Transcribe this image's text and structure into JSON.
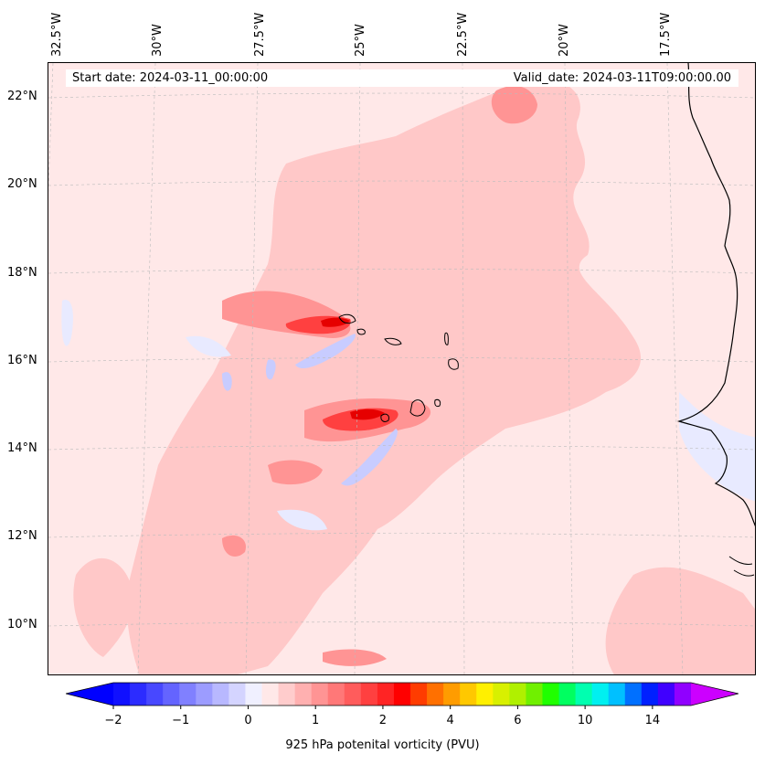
{
  "map": {
    "lon_labels": [
      "32.5°W",
      "30°W",
      "27.5°W",
      "25°W",
      "22.5°W",
      "20°W",
      "17.5°W"
    ],
    "lat_labels": [
      "22°N",
      "20°N",
      "18°N",
      "16°N",
      "14°N",
      "12°N",
      "10°N"
    ],
    "start_date": "Start date: 2024-03-11_00:00:00",
    "valid_date": "Valid_date: 2024-03-11T09:00:00.00",
    "field": "925 hPa potenital vorticity (PVU)",
    "colors": {
      "background": "#ffe8e8",
      "light_red": "#ffc8c8",
      "mid_red": "#ff9494",
      "red": "#ff4040",
      "dark_red": "#e60000",
      "light_blue": "#e8eaff",
      "blue": "#c8ccff",
      "coast": "#000000"
    }
  },
  "colorbar": {
    "label": "925 hPa potenital vorticity (PVU)",
    "ticks": [
      {
        "label": "−2"
      },
      {
        "label": "−1"
      },
      {
        "label": "0"
      },
      {
        "label": "1"
      },
      {
        "label": "2"
      },
      {
        "label": "4"
      },
      {
        "label": "6"
      },
      {
        "label": "10"
      },
      {
        "label": "14"
      }
    ],
    "colors": [
      "#1010ff",
      "#2c2cff",
      "#4848ff",
      "#6464ff",
      "#8080ff",
      "#9c9cff",
      "#b8b8ff",
      "#d4d4ff",
      "#f0f0ff",
      "#ffe8e8",
      "#ffcccc",
      "#ffb0b0",
      "#ff9494",
      "#ff7878",
      "#ff5c5c",
      "#ff4040",
      "#ff2424",
      "#ff0000",
      "#ff3c00",
      "#ff7000",
      "#ff9c00",
      "#ffc800",
      "#fff000",
      "#d8f000",
      "#b0f000",
      "#70f000",
      "#20ff00",
      "#00ff60",
      "#00ffb0",
      "#00f0f0",
      "#00c0ff",
      "#0070ff",
      "#0020ff",
      "#4000ff",
      "#9000ff"
    ],
    "under_color": "#0000ff",
    "over_color": "#cc00ff"
  }
}
